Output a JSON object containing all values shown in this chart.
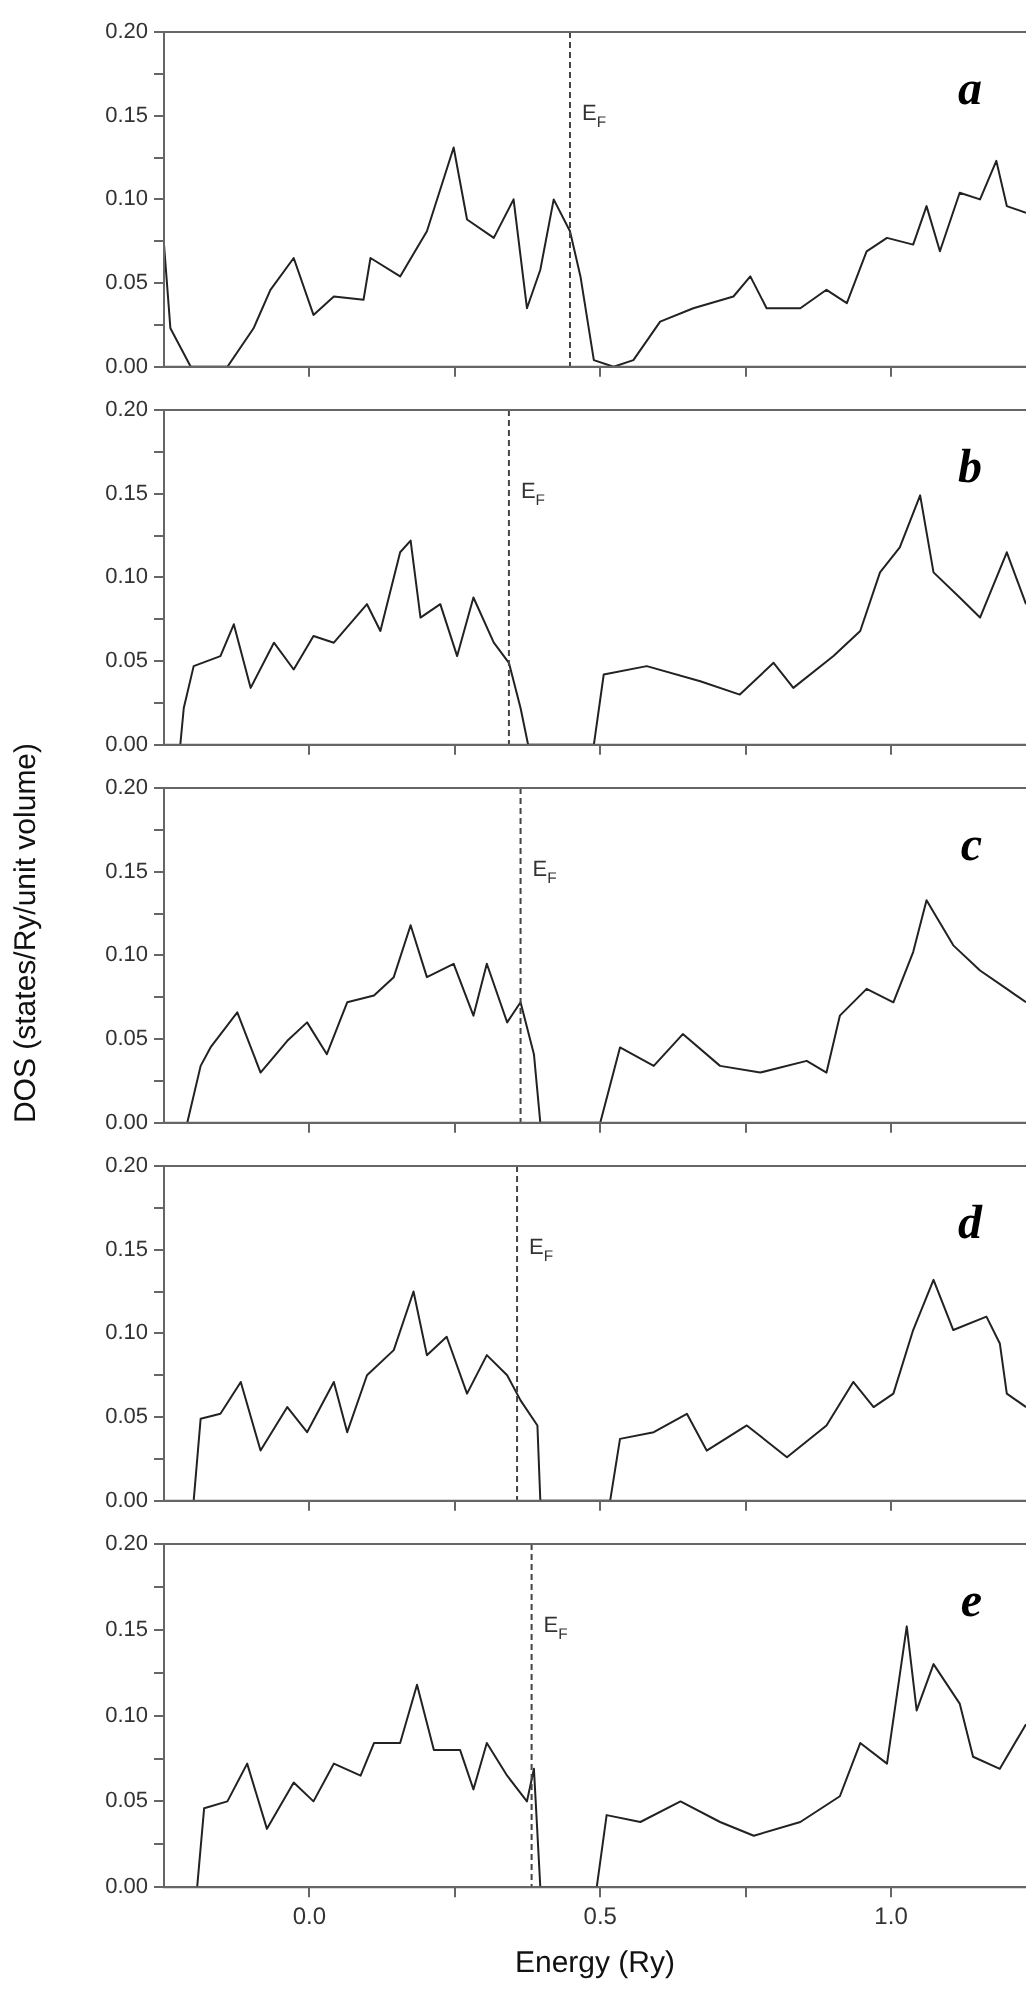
{
  "chart_data": [
    {
      "type": "line",
      "annotations": [
        "a"
      ],
      "marker": "none",
      "tick_labels": "y",
      "xticks": [
        {
          "value": 0,
          "label": null
        },
        {
          "value": 0.25,
          "label": null
        },
        {
          "value": 0.5,
          "label": null
        },
        {
          "value": 0.75,
          "label": null
        },
        {
          "value": 1,
          "label": null
        }
      ],
      "x": [
        -0.25,
        -0.239,
        -0.204,
        -0.141,
        -0.096,
        -0.067,
        -0.027,
        0.007,
        0.042,
        0.093,
        0.105,
        0.156,
        0.202,
        0.248,
        0.271,
        0.317,
        0.351,
        0.374,
        0.397,
        0.42,
        0.448,
        0.466,
        0.489,
        0.523,
        0.557,
        0.603,
        0.66,
        0.729,
        0.758,
        0.786,
        0.844,
        0.889,
        0.924,
        0.958,
        0.993,
        1.038,
        1.061,
        1.084,
        1.118,
        1.153,
        1.181,
        1.199,
        1.232
      ],
      "series": [
        {
          "color": "#222222",
          "values": [
            0.073,
            0.023,
            0,
            0,
            0.023,
            0.046,
            0.065,
            0.031,
            0.042,
            0.04,
            0.065,
            0.054,
            0.081,
            0.131,
            0.088,
            0.077,
            0.1,
            0.035,
            0.058,
            0.1,
            0.081,
            0.054,
            0.004,
            0,
            0.004,
            0.027,
            0.035,
            0.042,
            0.054,
            0.035,
            0.035,
            0.046,
            0.038,
            0.069,
            0.077,
            0.073,
            0.096,
            0.069,
            0.104,
            0.1,
            0.123,
            0.096,
            0.092
          ]
        }
      ],
      "xlim": [
        -0.25,
        1.232
      ],
      "ylim": [
        0,
        0.2
      ],
      "yticks": [
        {
          "value": 0,
          "label": "0.00"
        },
        {
          "value": 0.025,
          "label": null
        },
        {
          "value": 0.05,
          "label": "0.05"
        },
        {
          "value": 0.075,
          "label": null
        },
        {
          "value": 0.1,
          "label": "0.10"
        },
        {
          "value": 0.125,
          "label": null
        },
        {
          "value": 0.15,
          "label": "0.15"
        },
        {
          "value": 0.175,
          "label": null
        },
        {
          "value": 0.2,
          "label": "0.20"
        }
      ],
      "ref_lines": [
        {
          "axis": "x",
          "value": 0.448,
          "label": "E$_{F}$",
          "line_style": "dashed",
          "color": "#444444"
        }
      ]
    },
    {
      "type": "line",
      "annotations": [
        "b"
      ],
      "marker": "none",
      "tick_labels": "y",
      "x": [
        -0.222,
        -0.216,
        -0.199,
        -0.153,
        -0.13,
        -0.101,
        -0.061,
        -0.027,
        0.007,
        0.042,
        0.099,
        0.122,
        0.156,
        0.174,
        0.191,
        0.225,
        0.254,
        0.282,
        0.317,
        0.343,
        0.363,
        0.376,
        0.489,
        0.506,
        0.58,
        0.672,
        0.74,
        0.798,
        0.832,
        0.901,
        0.947,
        0.981,
        1.015,
        1.05,
        1.073,
        1.118,
        1.153,
        1.199,
        1.232
      ],
      "series": [
        {
          "color": "#222222",
          "values": [
            0,
            0.022,
            0.047,
            0.053,
            0.072,
            0.034,
            0.061,
            0.045,
            0.065,
            0.061,
            0.084,
            0.068,
            0.115,
            0.122,
            0.076,
            0.084,
            0.053,
            0.088,
            0.061,
            0.049,
            0.022,
            0,
            0,
            0.042,
            0.047,
            0.038,
            0.03,
            0.049,
            0.034,
            0.053,
            0.068,
            0.103,
            0.118,
            0.149,
            0.103,
            0.088,
            0.076,
            0.115,
            0.084
          ]
        }
      ],
      "xlim": [
        -0.25,
        1.232
      ],
      "xticks": [
        {
          "value": 0,
          "label": null
        },
        {
          "value": 0.25,
          "label": null
        },
        {
          "value": 0.5,
          "label": null
        },
        {
          "value": 0.75,
          "label": null
        },
        {
          "value": 1,
          "label": null
        }
      ],
      "ylim": [
        0,
        0.2
      ],
      "yticks": [
        {
          "value": 0,
          "label": "0.00"
        },
        {
          "value": 0.025,
          "label": null
        },
        {
          "value": 0.05,
          "label": "0.05"
        },
        {
          "value": 0.075,
          "label": null
        },
        {
          "value": 0.1,
          "label": "0.10"
        },
        {
          "value": 0.125,
          "label": null
        },
        {
          "value": 0.15,
          "label": "0.15"
        },
        {
          "value": 0.175,
          "label": null
        },
        {
          "value": 0.2,
          "label": "0.20"
        }
      ],
      "ref_lines": [
        {
          "axis": "x",
          "value": 0.343,
          "label": "E$_{F}$",
          "line_style": "dashed",
          "color": "#444444"
        }
      ]
    },
    {
      "type": "line",
      "annotations": [
        "c"
      ],
      "marker": "none",
      "tick_labels": "y",
      "ylabel": "DOS (states/Ry/unit volume)",
      "x": [
        -0.21,
        -0.187,
        -0.17,
        -0.124,
        -0.084,
        -0.038,
        -0.004,
        0.03,
        0.065,
        0.111,
        0.145,
        0.174,
        0.202,
        0.248,
        0.282,
        0.305,
        0.34,
        0.363,
        0.386,
        0.397,
        0.5,
        0.534,
        0.592,
        0.642,
        0.706,
        0.775,
        0.855,
        0.889,
        0.912,
        0.958,
        1.004,
        1.038,
        1.061,
        1.107,
        1.153,
        1.199,
        1.232
      ],
      "series": [
        {
          "color": "#222222",
          "values": [
            0,
            0.034,
            0.045,
            0.066,
            0.03,
            0.049,
            0.06,
            0.041,
            0.072,
            0.076,
            0.087,
            0.118,
            0.087,
            0.095,
            0.064,
            0.095,
            0.06,
            0.072,
            0.041,
            0,
            0,
            0.045,
            0.034,
            0.053,
            0.034,
            0.03,
            0.037,
            0.03,
            0.064,
            0.08,
            0.072,
            0.102,
            0.133,
            0.106,
            0.091,
            0.08,
            0.072
          ]
        }
      ],
      "xlim": [
        -0.25,
        1.232
      ],
      "xticks": [
        {
          "value": 0,
          "label": null
        },
        {
          "value": 0.25,
          "label": null
        },
        {
          "value": 0.5,
          "label": null
        },
        {
          "value": 0.75,
          "label": null
        },
        {
          "value": 1,
          "label": null
        }
      ],
      "ylim": [
        0,
        0.2
      ],
      "yticks": [
        {
          "value": 0,
          "label": "0.00"
        },
        {
          "value": 0.025,
          "label": null
        },
        {
          "value": 0.05,
          "label": "0.05"
        },
        {
          "value": 0.075,
          "label": null
        },
        {
          "value": 0.1,
          "label": "0.10"
        },
        {
          "value": 0.125,
          "label": null
        },
        {
          "value": 0.15,
          "label": "0.15"
        },
        {
          "value": 0.175,
          "label": null
        },
        {
          "value": 0.2,
          "label": "0.20"
        }
      ],
      "ref_lines": [
        {
          "axis": "x",
          "value": 0.363,
          "label": "E$_{F}$",
          "line_style": "dashed",
          "color": "#444444"
        }
      ]
    },
    {
      "type": "line",
      "annotations": [
        "d"
      ],
      "marker": "none",
      "tick_labels": "y",
      "x": [
        -0.199,
        -0.187,
        -0.153,
        -0.118,
        -0.084,
        -0.038,
        -0.004,
        0.042,
        0.065,
        0.099,
        0.145,
        0.179,
        0.202,
        0.236,
        0.271,
        0.305,
        0.34,
        0.363,
        0.392,
        0.397,
        0.517,
        0.534,
        0.592,
        0.649,
        0.683,
        0.752,
        0.821,
        0.889,
        0.935,
        0.97,
        1.004,
        1.038,
        1.073,
        1.107,
        1.164,
        1.187,
        1.199,
        1.232
      ],
      "series": [
        {
          "color": "#222222",
          "values": [
            0,
            0.049,
            0.052,
            0.071,
            0.03,
            0.056,
            0.041,
            0.071,
            0.041,
            0.075,
            0.09,
            0.125,
            0.087,
            0.098,
            0.064,
            0.087,
            0.075,
            0.06,
            0.045,
            0,
            0,
            0.037,
            0.041,
            0.052,
            0.03,
            0.045,
            0.026,
            0.045,
            0.071,
            0.056,
            0.064,
            0.102,
            0.132,
            0.102,
            0.11,
            0.094,
            0.064,
            0.056
          ]
        }
      ],
      "xlim": [
        -0.25,
        1.232
      ],
      "xticks": [
        {
          "value": 0,
          "label": null
        },
        {
          "value": 0.25,
          "label": null
        },
        {
          "value": 0.5,
          "label": null
        },
        {
          "value": 0.75,
          "label": null
        },
        {
          "value": 1,
          "label": null
        }
      ],
      "ylim": [
        0,
        0.2
      ],
      "yticks": [
        {
          "value": 0,
          "label": "0.00"
        },
        {
          "value": 0.025,
          "label": null
        },
        {
          "value": 0.05,
          "label": "0.05"
        },
        {
          "value": 0.075,
          "label": null
        },
        {
          "value": 0.1,
          "label": "0.10"
        },
        {
          "value": 0.125,
          "label": null
        },
        {
          "value": 0.15,
          "label": "0.15"
        },
        {
          "value": 0.175,
          "label": null
        },
        {
          "value": 0.2,
          "label": "0.20"
        }
      ],
      "ref_lines": [
        {
          "axis": "x",
          "value": 0.357,
          "label": "E$_{F}$",
          "line_style": "dashed",
          "color": "#444444"
        }
      ]
    },
    {
      "type": "line",
      "annotations": [
        "e"
      ],
      "marker": "none",
      "xlabel": "Energy (Ry)",
      "x": [
        -0.193,
        -0.181,
        -0.141,
        -0.107,
        -0.073,
        -0.027,
        0.007,
        0.042,
        0.088,
        0.111,
        0.156,
        0.185,
        0.214,
        0.259,
        0.282,
        0.305,
        0.34,
        0.374,
        0.386,
        0.397,
        0.494,
        0.511,
        0.569,
        0.638,
        0.706,
        0.764,
        0.844,
        0.912,
        0.947,
        0.993,
        1.027,
        1.044,
        1.073,
        1.118,
        1.141,
        1.187,
        1.232
      ],
      "series": [
        {
          "color": "#222222",
          "values": [
            0,
            0.046,
            0.05,
            0.072,
            0.034,
            0.061,
            0.05,
            0.072,
            0.065,
            0.084,
            0.084,
            0.118,
            0.08,
            0.08,
            0.057,
            0.084,
            0.065,
            0.05,
            0.069,
            0,
            0,
            0.042,
            0.038,
            0.05,
            0.038,
            0.03,
            0.038,
            0.053,
            0.084,
            0.072,
            0.152,
            0.103,
            0.13,
            0.107,
            0.076,
            0.069,
            0.095
          ]
        }
      ],
      "xlim": [
        -0.25,
        1.232
      ],
      "xticks": [
        {
          "value": 0,
          "label": "0.0"
        },
        {
          "value": 0.25,
          "label": null
        },
        {
          "value": 0.5,
          "label": "0.5"
        },
        {
          "value": 0.75,
          "label": null
        },
        {
          "value": 1,
          "label": "1.0"
        }
      ],
      "ylim": [
        0,
        0.2
      ],
      "yticks": [
        {
          "value": 0,
          "label": "0.00"
        },
        {
          "value": 0.025,
          "label": null
        },
        {
          "value": 0.05,
          "label": "0.05"
        },
        {
          "value": 0.075,
          "label": null
        },
        {
          "value": 0.1,
          "label": "0.10"
        },
        {
          "value": 0.125,
          "label": null
        },
        {
          "value": 0.15,
          "label": "0.15"
        },
        {
          "value": 0.175,
          "label": null
        },
        {
          "value": 0.2,
          "label": "0.20"
        }
      ],
      "ref_lines": [
        {
          "axis": "x",
          "value": 0.382,
          "label": "E$_{F}$",
          "line_style": "dashed",
          "color": "#444444"
        }
      ]
    }
  ]
}
